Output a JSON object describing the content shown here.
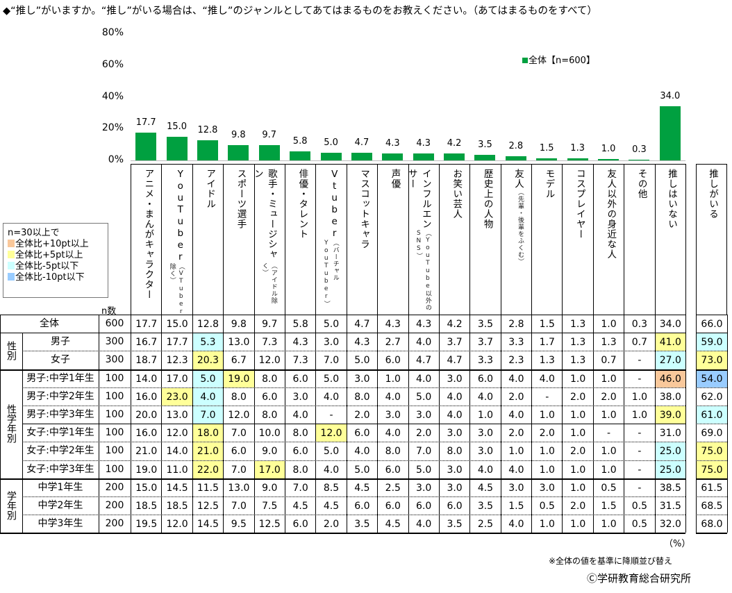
{
  "title": "◆“推し”がいますか。“推し”がいる場合は、“推し”のジャンルとしてあてはまるものをお教えください。（あてはまるものをすべて）",
  "chart_data": {
    "type": "bar",
    "title": "",
    "ylabel": "",
    "ylim": [
      0,
      80
    ],
    "yticks": [
      "0%",
      "20%",
      "40%",
      "60%",
      "80%"
    ],
    "legend": {
      "label": "全体【n=600】",
      "placement": "top-right"
    },
    "color": "#00a040",
    "categories": [
      "アニメ・まんがキャラクター",
      "YouTuber（VTuber除く）",
      "アイドル",
      "スポーツ選手",
      "歌手・ミュージシャン（アイドル除く）",
      "俳優・タレント",
      "Vtuber（バーチャルYouTuber）",
      "マスコットキャラ",
      "声優",
      "インフルエンサー（YouTube以外のSNS）",
      "お笑い芸人",
      "歴史上の人物",
      "友人（先輩・後輩をふくむ）",
      "モデル",
      "コスプレイヤー",
      "友人以外の身近な人",
      "その他",
      "推しはいない"
    ],
    "values": [
      17.7,
      15.0,
      12.8,
      9.8,
      9.7,
      5.8,
      5.0,
      4.7,
      4.3,
      4.3,
      4.2,
      3.5,
      2.8,
      1.5,
      1.3,
      1.0,
      0.3,
      34.0
    ],
    "value_labels": [
      "17.7",
      "15.0",
      "12.8",
      "9.8",
      "9.7",
      "5.8",
      "5.0",
      "4.7",
      "4.3",
      "4.3",
      "4.2",
      "3.5",
      "2.8",
      "1.5",
      "1.3",
      "1.0",
      "0.3",
      "34.0"
    ]
  },
  "columns": [
    {
      "main": "アニメ・まんがキャラクター",
      "sub": ""
    },
    {
      "main": "YouTuber",
      "sub": "（VTuber除く）"
    },
    {
      "main": "アイドル",
      "sub": ""
    },
    {
      "main": "スポーツ選手",
      "sub": ""
    },
    {
      "main": "歌手・ミュージシャン",
      "sub": "（アイドル除く）"
    },
    {
      "main": "俳優・タレント",
      "sub": ""
    },
    {
      "main": "Vtuber",
      "sub": "（バーチャルYouTuber）"
    },
    {
      "main": "マスコットキャラ",
      "sub": ""
    },
    {
      "main": "声優",
      "sub": ""
    },
    {
      "main": "インフルエンサー",
      "sub": "（YouTube以外のSNS）"
    },
    {
      "main": "お笑い芸人",
      "sub": ""
    },
    {
      "main": "歴史上の人物",
      "sub": ""
    },
    {
      "main": "友人",
      "sub": "（先輩・後輩をふくむ）"
    },
    {
      "main": "モデル",
      "sub": ""
    },
    {
      "main": "コスプレイヤー",
      "sub": ""
    },
    {
      "main": "友人以外の身近な人",
      "sub": ""
    },
    {
      "main": "その他",
      "sub": ""
    },
    {
      "main": "推しはいない",
      "sub": ""
    }
  ],
  "extra_column": "推しがいる",
  "n_header": "n数",
  "legend_box": {
    "heading": "n=30以上で",
    "items": [
      {
        "label": "全体比+10pt以上",
        "color": "#f9c89b"
      },
      {
        "label": "全体比+5pt以上",
        "color": "#ffff99"
      },
      {
        "label": "全体比-5pt以下",
        "color": "#ccffff"
      },
      {
        "label": "全体比-10pt以下",
        "color": "#99ccff"
      }
    ]
  },
  "groups": [
    {
      "label": "性別",
      "from": 1,
      "to": 2
    },
    {
      "label": "性学年別",
      "from": 3,
      "to": 8
    },
    {
      "label": "学年別",
      "from": 9,
      "to": 11
    }
  ],
  "rows": [
    {
      "label": "全体",
      "n": "600",
      "values": [
        "17.7",
        "15.0",
        "12.8",
        "9.8",
        "9.7",
        "5.8",
        "5.0",
        "4.7",
        "4.3",
        "4.3",
        "4.2",
        "3.5",
        "2.8",
        "1.5",
        "1.3",
        "1.0",
        "0.3",
        "34.0"
      ],
      "extra": "66.0",
      "marks": {}
    },
    {
      "label": "男子",
      "n": "300",
      "values": [
        "16.7",
        "17.7",
        "5.3",
        "13.0",
        "7.3",
        "4.3",
        "3.0",
        "4.3",
        "2.7",
        "4.0",
        "3.7",
        "3.7",
        "3.3",
        "1.7",
        "1.3",
        "1.3",
        "0.7",
        "41.0"
      ],
      "extra": "59.0",
      "marks": {
        "2": "c",
        "17": "y",
        "x": "c"
      }
    },
    {
      "label": "女子",
      "n": "300",
      "values": [
        "18.7",
        "12.3",
        "20.3",
        "6.7",
        "12.0",
        "7.3",
        "7.0",
        "5.0",
        "6.0",
        "4.7",
        "4.7",
        "3.3",
        "2.3",
        "1.3",
        "1.3",
        "0.7",
        "-",
        "27.0"
      ],
      "extra": "73.0",
      "marks": {
        "2": "y",
        "17": "c",
        "x": "y"
      }
    },
    {
      "label": "男子:中学1年生",
      "n": "100",
      "values": [
        "14.0",
        "17.0",
        "5.0",
        "19.0",
        "8.0",
        "6.0",
        "5.0",
        "3.0",
        "1.0",
        "4.0",
        "3.0",
        "6.0",
        "4.0",
        "4.0",
        "1.0",
        "1.0",
        "-",
        "46.0"
      ],
      "extra": "54.0",
      "marks": {
        "2": "c",
        "3": "y",
        "17": "o",
        "x": "b"
      }
    },
    {
      "label": "男子:中学2年生",
      "n": "100",
      "values": [
        "16.0",
        "23.0",
        "4.0",
        "8.0",
        "6.0",
        "3.0",
        "4.0",
        "8.0",
        "4.0",
        "5.0",
        "4.0",
        "4.0",
        "2.0",
        "-",
        "2.0",
        "2.0",
        "1.0",
        "38.0"
      ],
      "extra": "62.0",
      "marks": {
        "1": "y",
        "2": "c"
      }
    },
    {
      "label": "男子:中学3年生",
      "n": "100",
      "values": [
        "20.0",
        "13.0",
        "7.0",
        "12.0",
        "8.0",
        "4.0",
        "-",
        "2.0",
        "3.0",
        "3.0",
        "4.0",
        "1.0",
        "4.0",
        "1.0",
        "1.0",
        "1.0",
        "1.0",
        "39.0"
      ],
      "extra": "61.0",
      "marks": {
        "2": "c",
        "17": "y",
        "x": "c"
      }
    },
    {
      "label": "女子:中学1年生",
      "n": "100",
      "values": [
        "16.0",
        "12.0",
        "18.0",
        "7.0",
        "10.0",
        "8.0",
        "12.0",
        "6.0",
        "4.0",
        "2.0",
        "3.0",
        "3.0",
        "2.0",
        "2.0",
        "1.0",
        "-",
        "-",
        "31.0"
      ],
      "extra": "69.0",
      "marks": {
        "2": "y",
        "6": "y"
      }
    },
    {
      "label": "女子:中学2年生",
      "n": "100",
      "values": [
        "21.0",
        "14.0",
        "21.0",
        "6.0",
        "9.0",
        "6.0",
        "5.0",
        "4.0",
        "8.0",
        "7.0",
        "8.0",
        "3.0",
        "1.0",
        "1.0",
        "2.0",
        "1.0",
        "-",
        "25.0"
      ],
      "extra": "75.0",
      "marks": {
        "2": "y",
        "17": "c",
        "x": "y"
      }
    },
    {
      "label": "女子:中学3年生",
      "n": "100",
      "values": [
        "19.0",
        "11.0",
        "22.0",
        "7.0",
        "17.0",
        "8.0",
        "4.0",
        "5.0",
        "6.0",
        "5.0",
        "3.0",
        "4.0",
        "4.0",
        "1.0",
        "1.0",
        "1.0",
        "-",
        "25.0"
      ],
      "extra": "75.0",
      "marks": {
        "2": "y",
        "4": "y",
        "17": "c",
        "x": "y"
      }
    },
    {
      "label": "中学1年生",
      "n": "200",
      "values": [
        "15.0",
        "14.5",
        "11.5",
        "13.0",
        "9.0",
        "7.0",
        "8.5",
        "4.5",
        "2.5",
        "3.0",
        "3.0",
        "4.5",
        "3.0",
        "3.0",
        "1.0",
        "0.5",
        "-",
        "38.5"
      ],
      "extra": "61.5",
      "marks": {}
    },
    {
      "label": "中学2年生",
      "n": "200",
      "values": [
        "18.5",
        "18.5",
        "12.5",
        "7.0",
        "7.5",
        "4.5",
        "4.5",
        "6.0",
        "6.0",
        "6.0",
        "6.0",
        "3.5",
        "1.5",
        "0.5",
        "2.0",
        "1.5",
        "0.5",
        "31.5"
      ],
      "extra": "68.5",
      "marks": {}
    },
    {
      "label": "中学3年生",
      "n": "200",
      "values": [
        "19.5",
        "12.0",
        "14.5",
        "9.5",
        "12.5",
        "6.0",
        "2.0",
        "3.5",
        "4.5",
        "4.0",
        "3.5",
        "2.5",
        "4.0",
        "1.0",
        "1.0",
        "1.0",
        "0.5",
        "32.0"
      ],
      "extra": "68.0",
      "marks": {}
    }
  ],
  "footer": {
    "unit": "（%）",
    "note": "※全体の値を基準に降順並び替え",
    "copyright": "Ⓒ学研教育総合研究所"
  }
}
